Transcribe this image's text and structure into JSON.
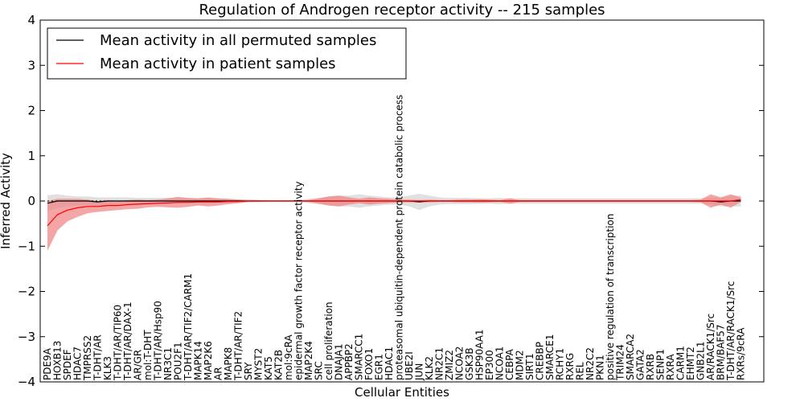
{
  "chart_data": {
    "type": "line",
    "title": "Regulation of Androgen receptor activity -- 215 samples",
    "xlabel": "Cellular Entities",
    "ylabel": "Inferred Activity",
    "ylim": [
      -4,
      4
    ],
    "yticks": [
      "4",
      "3",
      "2",
      "1",
      "0",
      "−1",
      "−2",
      "−3",
      "−4"
    ],
    "legend_position": "upper-left",
    "colors": {
      "permuted": "#000000",
      "patient": "#ff0000",
      "patient_band": "#f08080",
      "permuted_band": "#bbbbbb"
    },
    "categories": [
      "PDE9A",
      "HOXB13",
      "SPDEF",
      "HDAC7",
      "TMPRSS2",
      "T-DHT/AR",
      "KLK3",
      "T-DHT/AR/TIP60",
      "T-DHT/AR/DAX-1",
      "AR/GR",
      "mol:T-DHT",
      "T-DHT/AR/Hsp90",
      "NR3C1",
      "POU2F1",
      "T-DHT/AR/TIF2/CARM1",
      "MAPK14",
      "MAP2K6",
      "AR",
      "MAPK8",
      "T-DHT/AR/TIF2",
      "SRY",
      "MYST2",
      "KAT5",
      "KAT2B",
      "mol:9cRA",
      "epidermal growth factor receptor activity",
      "MAP2K4",
      "SRC",
      "cell proliferation",
      "DNAJA1",
      "APPBP2",
      "SMARCC1",
      "FOXO1",
      "EGR1",
      "HDAC1",
      "proteasomal ubiquitin-dependent protein catabolic process",
      "UBE2I",
      "JUN",
      "KLK2",
      "NR2C1",
      "ZMIZ2",
      "NCOA2",
      "GSK3B",
      "HSP90AA1",
      "EP300",
      "NCOA1",
      "CEBPA",
      "MDM2",
      "SIRT1",
      "CREBBP",
      "SMARCE1",
      "RCHY1",
      "RXRG",
      "REL",
      "NR2C2",
      "PKN1",
      "positive regulation of transcription",
      "TRIM24",
      "SMARCA2",
      "GATA2",
      "RXRB",
      "SENP1",
      "RXRA",
      "CARM1",
      "EHMT2",
      "GNB2L1",
      "AR/RACK1/Src",
      "BRM/BAF57",
      "T-DHT/AR/RACK1/Src",
      "RXRs/9cRA"
    ],
    "series": [
      {
        "name": "Mean activity in all permuted samples",
        "values": [
          -0.05,
          0.0,
          0.0,
          0.0,
          0.0,
          -0.02,
          0.0,
          0.0,
          0.0,
          0.0,
          0.0,
          0.0,
          0.0,
          0.0,
          0.0,
          0.0,
          0.0,
          0.0,
          0.0,
          0.0,
          0.0,
          0.0,
          0.0,
          0.0,
          0.0,
          0.0,
          0.0,
          0.0,
          0.0,
          0.0,
          0.0,
          0.0,
          0.0,
          0.0,
          0.0,
          0.0,
          0.0,
          -0.02,
          0.0,
          0.0,
          0.0,
          0.0,
          0.0,
          0.0,
          0.0,
          0.0,
          0.0,
          0.0,
          0.0,
          0.0,
          0.0,
          0.0,
          0.0,
          0.0,
          0.0,
          0.0,
          0.0,
          0.0,
          0.0,
          0.0,
          0.0,
          0.0,
          0.0,
          0.0,
          0.0,
          0.0,
          0.0,
          -0.02,
          0.0,
          0.0
        ],
        "band": [
          0.18,
          0.15,
          0.12,
          0.1,
          0.1,
          0.1,
          0.08,
          0.08,
          0.08,
          0.07,
          0.07,
          0.07,
          0.07,
          0.06,
          0.06,
          0.06,
          0.06,
          0.05,
          0.05,
          0.04,
          0.03,
          0.02,
          0.02,
          0.02,
          0.02,
          0.02,
          0.05,
          0.07,
          0.1,
          0.12,
          0.12,
          0.15,
          0.12,
          0.1,
          0.08,
          0.08,
          0.12,
          0.18,
          0.12,
          0.08,
          0.07,
          0.07,
          0.07,
          0.06,
          0.06,
          0.07,
          0.06,
          0.06,
          0.06,
          0.06,
          0.06,
          0.06,
          0.06,
          0.06,
          0.06,
          0.06,
          0.06,
          0.06,
          0.06,
          0.06,
          0.06,
          0.06,
          0.06,
          0.06,
          0.06,
          0.06,
          0.08,
          0.1,
          0.12,
          0.12
        ]
      },
      {
        "name": "Mean activity in patient samples",
        "values": [
          -0.55,
          -0.3,
          -0.2,
          -0.15,
          -0.12,
          -0.12,
          -0.1,
          -0.1,
          -0.08,
          -0.07,
          -0.06,
          -0.05,
          -0.04,
          -0.03,
          -0.03,
          -0.02,
          -0.02,
          -0.02,
          -0.01,
          -0.01,
          0.0,
          0.0,
          0.0,
          0.0,
          0.0,
          0.0,
          0.0,
          0.0,
          0.0,
          0.0,
          0.0,
          0.0,
          0.0,
          0.0,
          0.0,
          0.0,
          0.0,
          0.0,
          0.0,
          0.0,
          0.0,
          0.0,
          0.0,
          0.0,
          0.0,
          0.0,
          0.0,
          0.0,
          0.0,
          0.0,
          0.0,
          0.0,
          0.0,
          0.0,
          0.0,
          0.0,
          0.0,
          0.0,
          0.0,
          0.0,
          0.0,
          0.0,
          0.0,
          0.0,
          0.0,
          0.0,
          0.0,
          0.0,
          0.0,
          0.03
        ],
        "band": [
          0.55,
          0.35,
          0.25,
          0.2,
          0.15,
          0.12,
          0.12,
          0.1,
          0.1,
          0.1,
          0.08,
          0.08,
          0.1,
          0.12,
          0.1,
          0.08,
          0.1,
          0.08,
          0.06,
          0.04,
          0.02,
          0.02,
          0.01,
          0.01,
          0.01,
          0.01,
          0.02,
          0.06,
          0.1,
          0.12,
          0.08,
          0.05,
          0.08,
          0.06,
          0.05,
          0.03,
          0.03,
          0.02,
          0.03,
          0.02,
          0.02,
          0.03,
          0.03,
          0.04,
          0.03,
          0.02,
          0.06,
          0.02,
          0.02,
          0.02,
          0.02,
          0.02,
          0.02,
          0.02,
          0.02,
          0.02,
          0.02,
          0.02,
          0.02,
          0.02,
          0.02,
          0.02,
          0.02,
          0.02,
          0.02,
          0.03,
          0.15,
          0.08,
          0.15,
          0.05
        ]
      }
    ]
  }
}
